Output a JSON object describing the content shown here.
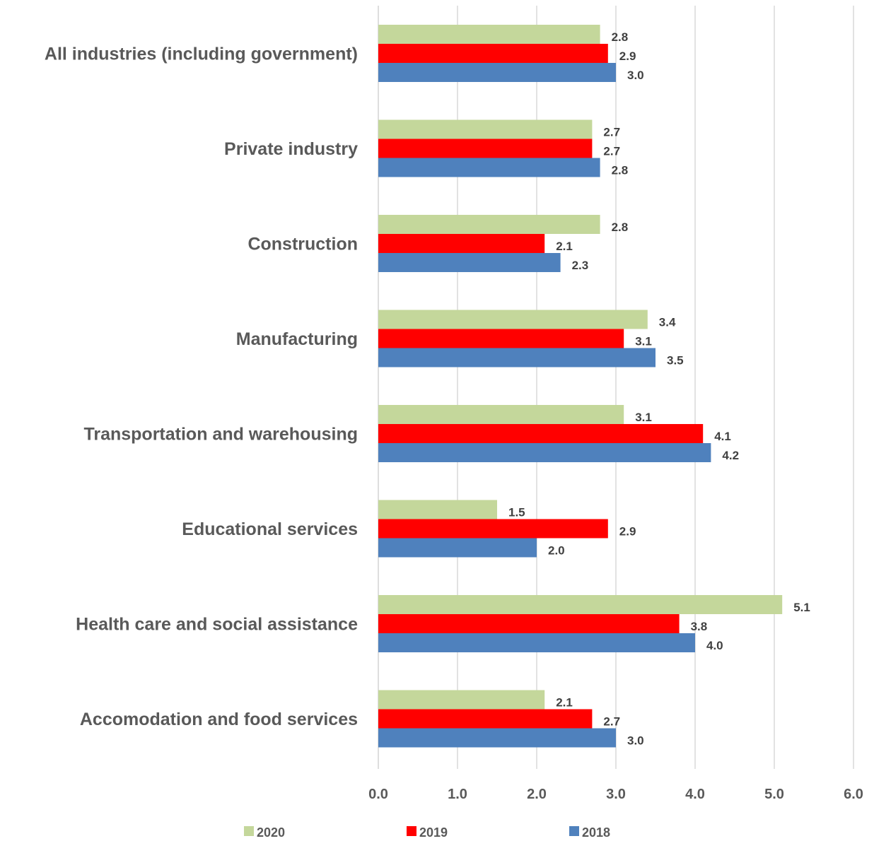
{
  "chart_data": {
    "type": "bar",
    "orientation": "horizontal",
    "categories": [
      "All industries (including government)",
      "Private industry",
      "Construction",
      "Manufacturing",
      "Transportation and warehousing",
      "Educational services",
      "Health care and social assistance",
      "Accomodation and food services"
    ],
    "series": [
      {
        "name": "2020",
        "color": "#c4d79b",
        "values": [
          2.8,
          2.7,
          2.8,
          3.4,
          3.1,
          1.5,
          5.1,
          2.1
        ],
        "labels": [
          "2.8",
          "2.7",
          "2.8",
          "3.4",
          "3.1",
          "1.5",
          "5.1",
          "2.1"
        ]
      },
      {
        "name": "2019",
        "color": "#ff0000",
        "values": [
          2.9,
          2.7,
          2.1,
          3.1,
          4.1,
          2.9,
          3.8,
          2.7
        ],
        "labels": [
          "2.9",
          "2.7",
          "2.1",
          "3.1",
          "4.1",
          "2.9",
          "3.8",
          "2.7"
        ]
      },
      {
        "name": "2018",
        "color": "#4f81bd",
        "values": [
          3.0,
          2.8,
          2.3,
          3.5,
          4.2,
          2.0,
          4.0,
          3.0
        ],
        "labels": [
          "3.0",
          "2.8",
          "2.3",
          "3.5",
          "4.2",
          "2.0",
          "4.0",
          "3.0"
        ]
      }
    ],
    "xlim": [
      0,
      6
    ],
    "ticks": [
      "0.0",
      "1.0",
      "2.0",
      "3.0",
      "4.0",
      "5.0",
      "6.0"
    ],
    "grid": true,
    "legend_position": "bottom",
    "title": "",
    "xlabel": "",
    "ylabel": ""
  }
}
